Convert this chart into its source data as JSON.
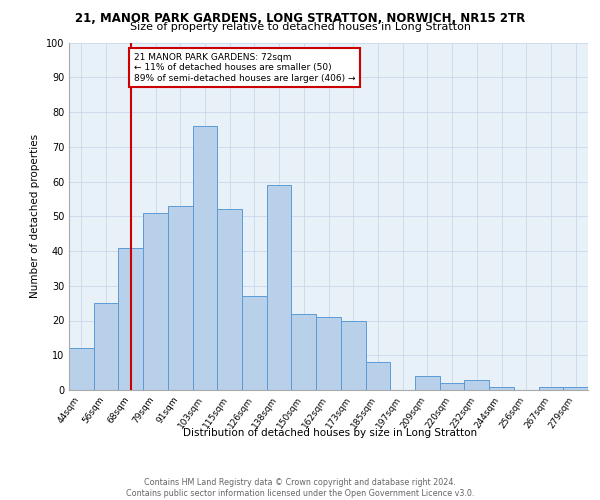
{
  "title1": "21, MANOR PARK GARDENS, LONG STRATTON, NORWICH, NR15 2TR",
  "title2": "Size of property relative to detached houses in Long Stratton",
  "xlabel": "Distribution of detached houses by size in Long Stratton",
  "ylabel": "Number of detached properties",
  "bin_labels": [
    "44sqm",
    "56sqm",
    "68sqm",
    "79sqm",
    "91sqm",
    "103sqm",
    "115sqm",
    "126sqm",
    "138sqm",
    "150sqm",
    "162sqm",
    "173sqm",
    "185sqm",
    "197sqm",
    "209sqm",
    "220sqm",
    "232sqm",
    "244sqm",
    "256sqm",
    "267sqm",
    "279sqm"
  ],
  "bar_heights": [
    12,
    25,
    41,
    51,
    53,
    76,
    52,
    27,
    59,
    22,
    21,
    20,
    8,
    0,
    4,
    2,
    3,
    1,
    0,
    1,
    1
  ],
  "bar_color": "#b8d0ea",
  "bar_edge_color": "#5b9bd5",
  "grid_color": "#c8d8ec",
  "vline_x": 2,
  "vline_color": "#cc0000",
  "annotation_text": "21 MANOR PARK GARDENS: 72sqm\n← 11% of detached houses are smaller (50)\n89% of semi-detached houses are larger (406) →",
  "annotation_box_color": "#cc0000",
  "footer": "Contains HM Land Registry data © Crown copyright and database right 2024.\nContains public sector information licensed under the Open Government Licence v3.0.",
  "ylim": [
    0,
    100
  ],
  "bg_color": "#e8f0f8"
}
